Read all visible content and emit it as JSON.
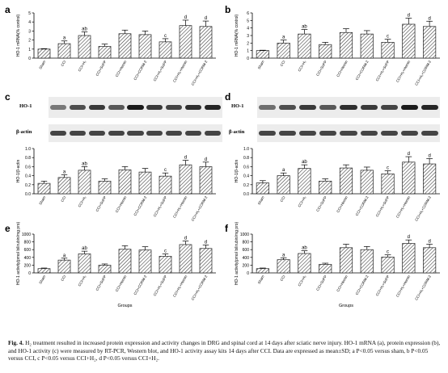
{
  "categories": [
    "Sham",
    "CCI",
    "CCI+H₂",
    "CCI+SnPP",
    "CCI+Hemin",
    "CCI+CORM-2",
    "CCI+H₂+SnPP",
    "CCI+H₂+Hemin",
    "CCI+H₂+CORM-2"
  ],
  "letters": [
    "",
    "a",
    "ab",
    "",
    "",
    "",
    "c",
    "d",
    "d"
  ],
  "blot": {
    "target": "HO-1",
    "loading": "β-actin"
  },
  "caption": {
    "lead": "Fig. 4.",
    "text": "H₂ treatment resulted in increased protein expression and activity changes in DRG and spinal cord at 14 days after sciatic nerve injury. HO-1 mRNA (a), protein expression (b), and HO-1 activity (c) were measured by RT-PCR, Western blot, and HO-1 activity assay kits 14 days after CCI. Data are expressed as mean±SD; a P<0.05 versus sham, b P<0.05 versus CCI, c P<0.05 versus CCI+H₂, d P<0.05 versus CCI+H₂."
  },
  "chart_data": [
    {
      "panel": "a",
      "type": "bar",
      "ylabel": "HO-1 mRNA(% control)",
      "ylim": [
        0,
        5
      ],
      "yticks": [
        0,
        1,
        2,
        3,
        4,
        5
      ],
      "values": [
        1.0,
        1.6,
        2.5,
        1.3,
        2.7,
        2.6,
        1.8,
        3.6,
        3.5
      ],
      "errors": [
        0.05,
        0.3,
        0.4,
        0.25,
        0.4,
        0.4,
        0.35,
        0.6,
        0.6
      ]
    },
    {
      "panel": "b",
      "type": "bar",
      "ylabel": "HO-1 mRNA(% control)",
      "ylim": [
        0,
        6
      ],
      "yticks": [
        0,
        1,
        2,
        3,
        4,
        5,
        6
      ],
      "values": [
        1.0,
        2.0,
        3.2,
        1.8,
        3.4,
        3.2,
        2.1,
        4.5,
        4.2
      ],
      "errors": [
        0.05,
        0.4,
        0.6,
        0.3,
        0.5,
        0.45,
        0.4,
        0.8,
        0.7
      ]
    },
    {
      "panel": "c",
      "type": "bar",
      "ylabel": "HO-1/β-actin",
      "ylim": [
        0,
        1.0
      ],
      "yticks": [
        0.0,
        0.2,
        0.4,
        0.6,
        0.8,
        1.0
      ],
      "values": [
        0.23,
        0.36,
        0.52,
        0.28,
        0.53,
        0.48,
        0.39,
        0.64,
        0.6
      ],
      "errors": [
        0.05,
        0.06,
        0.08,
        0.05,
        0.07,
        0.08,
        0.07,
        0.1,
        0.1
      ]
    },
    {
      "panel": "d",
      "type": "bar",
      "ylabel": "HO-1/β-actin",
      "ylim": [
        0,
        1.0
      ],
      "yticks": [
        0.0,
        0.2,
        0.4,
        0.6,
        0.8,
        1.0
      ],
      "values": [
        0.24,
        0.4,
        0.56,
        0.28,
        0.57,
        0.52,
        0.44,
        0.7,
        0.66
      ],
      "errors": [
        0.05,
        0.06,
        0.08,
        0.05,
        0.07,
        0.07,
        0.07,
        0.12,
        0.12
      ]
    },
    {
      "panel": "e",
      "type": "bar",
      "ylabel": "HO-1 activity(pmol bilirubin/mg pro)",
      "xlabel": "Groups",
      "ylim": [
        0,
        1000
      ],
      "yticks": [
        0,
        200,
        400,
        600,
        800,
        1000
      ],
      "values": [
        110,
        330,
        490,
        200,
        610,
        590,
        430,
        730,
        630
      ],
      "errors": [
        15,
        50,
        70,
        30,
        90,
        85,
        60,
        90,
        90
      ]
    },
    {
      "panel": "f",
      "type": "bar",
      "ylabel": "HO-1 activity(pmol bilirubin/mg pro)",
      "xlabel": "Groups",
      "ylim": [
        0,
        1000
      ],
      "yticks": [
        0,
        200,
        400,
        600,
        800,
        1000
      ],
      "values": [
        110,
        340,
        500,
        220,
        650,
        600,
        410,
        760,
        650
      ],
      "errors": [
        15,
        50,
        70,
        30,
        90,
        80,
        55,
        90,
        90
      ]
    }
  ]
}
